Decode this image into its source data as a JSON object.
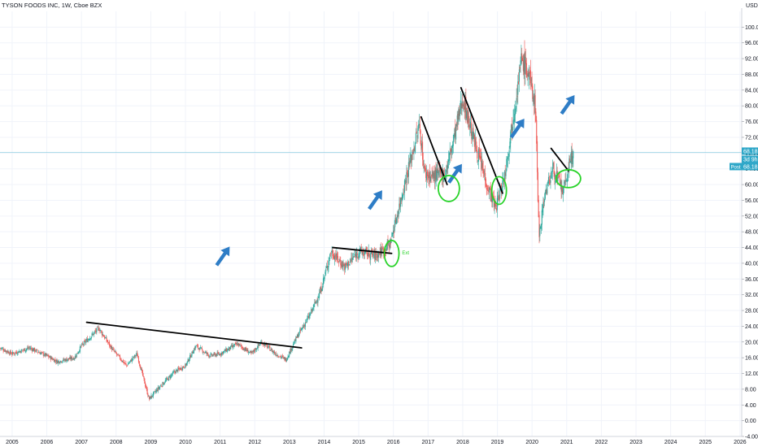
{
  "chart_data": {
    "type": "candlestick",
    "title": "TYSON FOODS INC, 1W, Cboe BZX",
    "currency": "USD",
    "xlabel": "",
    "ylabel": "",
    "ylim": [
      -4,
      104
    ],
    "xlim": [
      2004.65,
      2026.05
    ],
    "grid": true,
    "x_ticks": [
      "2005",
      "2006",
      "2007",
      "2008",
      "2009",
      "2010",
      "2011",
      "2012",
      "2013",
      "2014",
      "2015",
      "2016",
      "2017",
      "2018",
      "2019",
      "2020",
      "2021",
      "2022",
      "2023",
      "2024",
      "2025",
      "2026"
    ],
    "y_ticks": [
      "-4.00",
      "0.00",
      "4.00",
      "8.00",
      "12.00",
      "16.00",
      "20.00",
      "24.00",
      "28.00",
      "32.00",
      "36.00",
      "40.00",
      "44.00",
      "48.00",
      "52.00",
      "56.00",
      "60.00",
      "64.00",
      "68.00",
      "72.00",
      "76.00",
      "80.00",
      "84.00",
      "88.00",
      "92.00",
      "96.00",
      "100.00"
    ],
    "price_path": [
      {
        "x": 2004.65,
        "y": 18.5
      },
      {
        "x": 2005.0,
        "y": 17.0
      },
      {
        "x": 2005.5,
        "y": 18.5
      },
      {
        "x": 2006.0,
        "y": 16.5
      },
      {
        "x": 2006.3,
        "y": 15.0
      },
      {
        "x": 2006.8,
        "y": 16.0
      },
      {
        "x": 2007.0,
        "y": 19.0
      },
      {
        "x": 2007.5,
        "y": 23.5
      },
      {
        "x": 2007.9,
        "y": 18.0
      },
      {
        "x": 2008.3,
        "y": 14.0
      },
      {
        "x": 2008.6,
        "y": 17.0
      },
      {
        "x": 2008.95,
        "y": 5.5
      },
      {
        "x": 2009.3,
        "y": 9.0
      },
      {
        "x": 2009.7,
        "y": 12.5
      },
      {
        "x": 2010.0,
        "y": 14.0
      },
      {
        "x": 2010.3,
        "y": 19.0
      },
      {
        "x": 2010.7,
        "y": 16.5
      },
      {
        "x": 2011.0,
        "y": 17.0
      },
      {
        "x": 2011.5,
        "y": 19.5
      },
      {
        "x": 2011.9,
        "y": 17.0
      },
      {
        "x": 2012.2,
        "y": 20.0
      },
      {
        "x": 2012.6,
        "y": 17.0
      },
      {
        "x": 2012.9,
        "y": 15.5
      },
      {
        "x": 2013.2,
        "y": 21.0
      },
      {
        "x": 2013.6,
        "y": 27.0
      },
      {
        "x": 2013.9,
        "y": 33.0
      },
      {
        "x": 2014.2,
        "y": 43.0
      },
      {
        "x": 2014.6,
        "y": 39.0
      },
      {
        "x": 2015.0,
        "y": 43.0
      },
      {
        "x": 2015.5,
        "y": 42.0
      },
      {
        "x": 2015.9,
        "y": 45.0
      },
      {
        "x": 2016.1,
        "y": 52.0
      },
      {
        "x": 2016.4,
        "y": 63.0
      },
      {
        "x": 2016.75,
        "y": 75.0
      },
      {
        "x": 2016.9,
        "y": 63.0
      },
      {
        "x": 2017.1,
        "y": 62.0
      },
      {
        "x": 2017.5,
        "y": 63.0
      },
      {
        "x": 2017.7,
        "y": 70.0
      },
      {
        "x": 2018.0,
        "y": 82.0
      },
      {
        "x": 2018.3,
        "y": 72.0
      },
      {
        "x": 2018.7,
        "y": 60.0
      },
      {
        "x": 2018.95,
        "y": 54.0
      },
      {
        "x": 2019.2,
        "y": 62.0
      },
      {
        "x": 2019.5,
        "y": 80.0
      },
      {
        "x": 2019.7,
        "y": 92.0
      },
      {
        "x": 2019.9,
        "y": 88.0
      },
      {
        "x": 2020.1,
        "y": 80.0
      },
      {
        "x": 2020.2,
        "y": 47.0
      },
      {
        "x": 2020.35,
        "y": 57.0
      },
      {
        "x": 2020.6,
        "y": 64.0
      },
      {
        "x": 2020.9,
        "y": 58.0
      },
      {
        "x": 2021.1,
        "y": 66.0
      },
      {
        "x": 2021.2,
        "y": 68.18
      }
    ],
    "annotations": {
      "trendlines": [
        {
          "x1": 2007.15,
          "y1": 25.0,
          "x2": 2013.35,
          "y2": 18.5
        },
        {
          "x1": 2014.25,
          "y1": 44.0,
          "x2": 2015.95,
          "y2": 42.5
        },
        {
          "x1": 2016.8,
          "y1": 77.2,
          "x2": 2017.55,
          "y2": 60.0
        },
        {
          "x1": 2017.95,
          "y1": 84.6,
          "x2": 2019.15,
          "y2": 57.8
        },
        {
          "x1": 2020.55,
          "y1": 69.2,
          "x2": 2021.05,
          "y2": 63.5
        }
      ],
      "arrows": [
        {
          "x": 2010.9,
          "y": 39.5
        },
        {
          "x": 2015.3,
          "y": 53.8
        },
        {
          "x": 2017.6,
          "y": 60.5
        },
        {
          "x": 2019.4,
          "y": 72.0
        },
        {
          "x": 2020.85,
          "y": 78.0
        }
      ],
      "circles": [
        {
          "x": 2015.95,
          "y": 42.5,
          "rx": 9,
          "ry": 16
        },
        {
          "x": 2017.6,
          "y": 59.0,
          "rx": 13,
          "ry": 16
        },
        {
          "x": 2019.05,
          "y": 58.5,
          "rx": 9,
          "ry": 17
        },
        {
          "x": 2021.05,
          "y": 61.5,
          "rx": 15,
          "ry": 11
        }
      ],
      "small_text": {
        "label": "Ext",
        "x": 2016.25,
        "y": 42.3
      }
    },
    "last_price": "68.18",
    "last_price_label": "68.18",
    "countdown_label": "3d 9h",
    "post_label": "Post",
    "post_value": "68.18",
    "colors": {
      "up": "#26a69a",
      "down": "#ef5350",
      "grid": "#f0f3fa",
      "annot_line": "#000000",
      "arrow": "#2e7dc6",
      "circle": "#2ad32a",
      "price_line": "#2ea7c8",
      "axis_text": "#131722"
    }
  }
}
